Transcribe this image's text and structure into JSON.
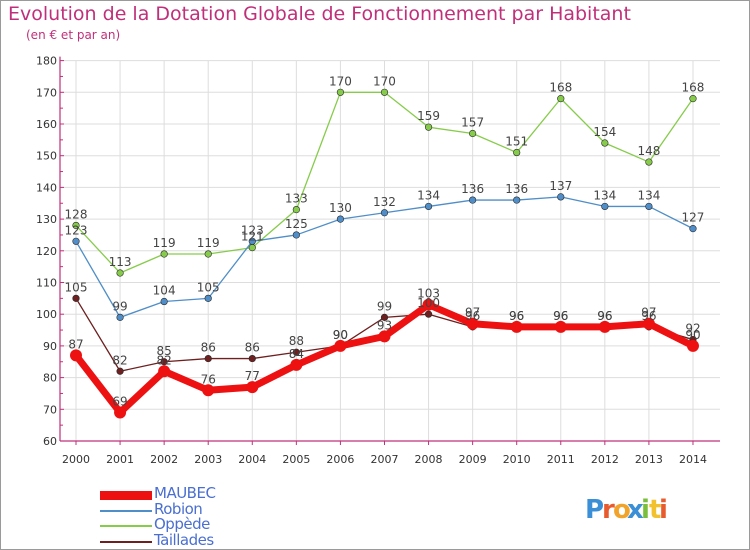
{
  "header": {
    "title": "Evolution de la Dotation Globale de Fonctionnement par Habitant",
    "subtitle": "(en € et par an)"
  },
  "colors": {
    "title": "#c0307a",
    "legend_text": "#4a6fd0",
    "axis": "#c0307a",
    "grid": "#dddddd"
  },
  "logo": {
    "text": "Proxiti"
  },
  "chart_data": {
    "type": "line",
    "x": [
      "2000",
      "2001",
      "2002",
      "2003",
      "2004",
      "2005",
      "2006",
      "2007",
      "2008",
      "2009",
      "2010",
      "2011",
      "2012",
      "2013",
      "2014"
    ],
    "ylim": [
      60,
      180
    ],
    "yticks": [
      60,
      70,
      80,
      90,
      100,
      110,
      120,
      130,
      140,
      150,
      160,
      170,
      180
    ],
    "grid": true,
    "legend_position": "bottom-left",
    "series": [
      {
        "name": "MAUBEC",
        "color": "#ee1111",
        "values": [
          87,
          69,
          82,
          76,
          77,
          84,
          90,
          93,
          103,
          97,
          96,
          96,
          96,
          97,
          90
        ]
      },
      {
        "name": "Robion",
        "color": "#4f8ec8",
        "values": [
          123,
          99,
          104,
          105,
          123,
          125,
          130,
          132,
          134,
          136,
          136,
          137,
          134,
          134,
          127
        ]
      },
      {
        "name": "Oppède",
        "color": "#86cc4a",
        "values": [
          128,
          113,
          119,
          119,
          121,
          133,
          170,
          170,
          159,
          157,
          151,
          168,
          154,
          148,
          168
        ]
      },
      {
        "name": "Taillades",
        "color": "#6e1f1f",
        "values": [
          105,
          82,
          85,
          86,
          86,
          88,
          90,
          99,
          100,
          96,
          96,
          96,
          96,
          96,
          92
        ]
      }
    ]
  }
}
